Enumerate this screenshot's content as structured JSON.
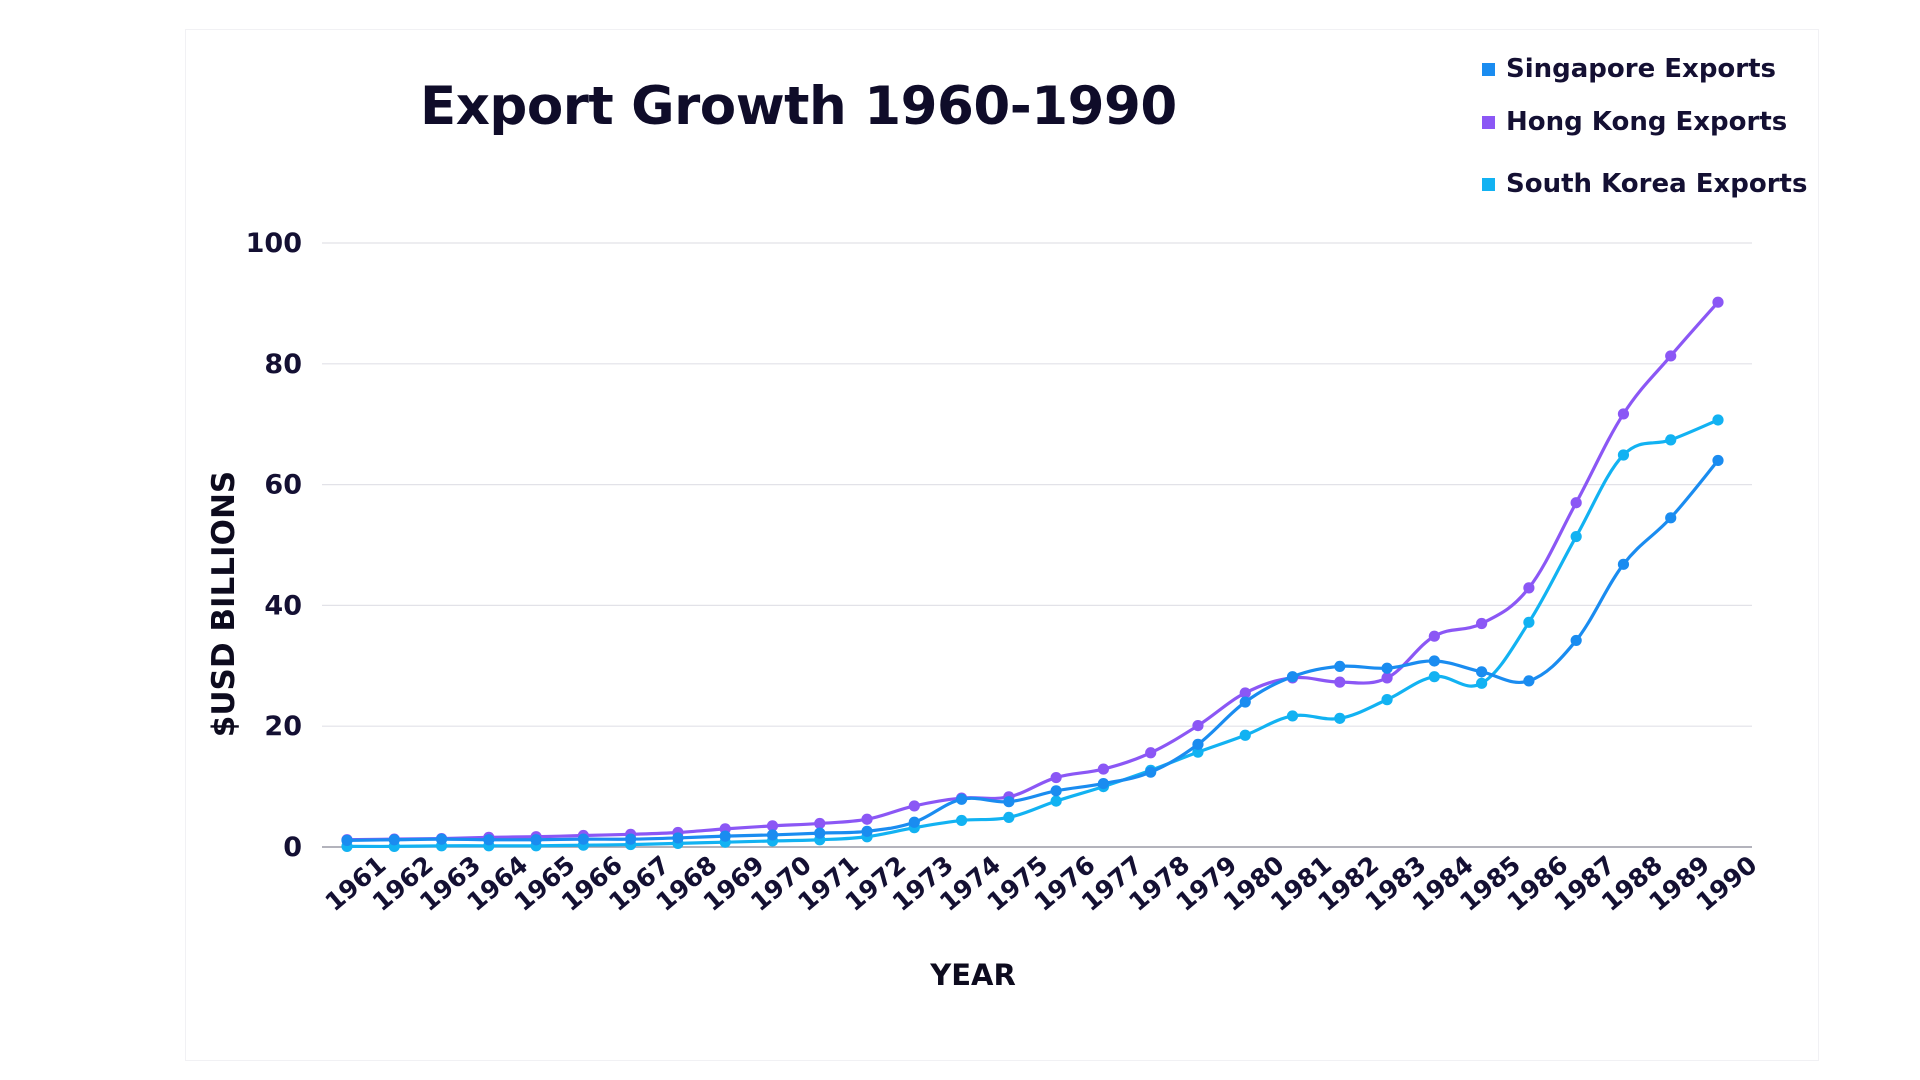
{
  "chart_data": {
    "type": "line",
    "title": "Export Growth 1960-1990",
    "xlabel": "YEAR",
    "ylabel": "$USD BILLIONS",
    "ylim": [
      0,
      100
    ],
    "yticks": [
      0,
      20,
      40,
      60,
      80,
      100
    ],
    "grid": true,
    "legend_position": "top-right",
    "x": [
      "1961",
      "1962",
      "1963",
      "1964",
      "1965",
      "1966",
      "1967",
      "1968",
      "1969",
      "1970",
      "1971",
      "1972",
      "1973",
      "1974",
      "1975",
      "1976",
      "1977",
      "1978",
      "1979",
      "1980",
      "1981",
      "1982",
      "1983",
      "1984",
      "1985",
      "1986",
      "1987",
      "1988",
      "1989",
      "1990"
    ],
    "series": [
      {
        "name": "Singapore Exports",
        "color": "#1a8cf0",
        "values": [
          1.1,
          1.2,
          1.3,
          1.2,
          1.2,
          1.3,
          1.3,
          1.5,
          1.8,
          2.0,
          2.3,
          2.6,
          4.1,
          7.9,
          7.5,
          9.3,
          10.5,
          12.4,
          17.0,
          24.0,
          28.2,
          29.9,
          29.6,
          30.8,
          29.0,
          27.5,
          34.2,
          46.8,
          54.5,
          64.0
        ]
      },
      {
        "name": "Hong Kong Exports",
        "color": "#8b57f5",
        "values": [
          1.2,
          1.3,
          1.4,
          1.6,
          1.7,
          1.9,
          2.1,
          2.4,
          3.0,
          3.5,
          3.9,
          4.6,
          6.8,
          8.1,
          8.3,
          11.5,
          12.9,
          15.6,
          20.1,
          25.5,
          28.0,
          27.3,
          28.0,
          34.9,
          37.0,
          42.9,
          57.0,
          71.7,
          81.3,
          90.2
        ]
      },
      {
        "name": "South Korea Exports",
        "color": "#12b2f2",
        "values": [
          0.1,
          0.1,
          0.2,
          0.2,
          0.2,
          0.3,
          0.4,
          0.6,
          0.8,
          1.0,
          1.2,
          1.7,
          3.2,
          4.4,
          4.9,
          7.6,
          10.0,
          12.7,
          15.7,
          18.5,
          21.7,
          21.3,
          24.4,
          28.2,
          27.1,
          37.2,
          51.4,
          64.9,
          67.4,
          70.7
        ]
      }
    ]
  }
}
